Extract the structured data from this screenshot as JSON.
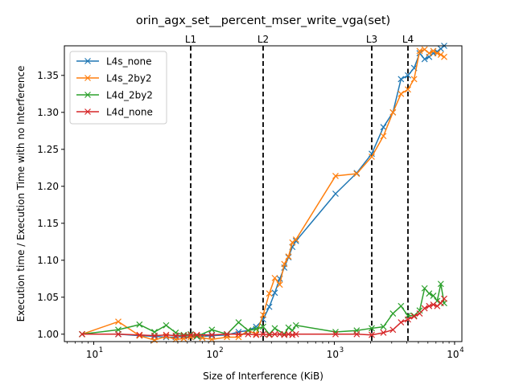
{
  "chart_data": {
    "type": "line",
    "title": "orin_agx_set__percent_mser_write_vga(set)",
    "xlabel": "Size of Interference (KiB)",
    "ylabel": "Execution time / Execution Time with no Interference",
    "xscale": "log",
    "xlim": [
      5.7,
      11500
    ],
    "ylim": [
      0.99,
      1.39
    ],
    "x_ticks": [
      {
        "value": 10,
        "label": "10",
        "exp": "1"
      },
      {
        "value": 100,
        "label": "10",
        "exp": "2"
      },
      {
        "value": 1000,
        "label": "10",
        "exp": "3"
      },
      {
        "value": 10000,
        "label": "10",
        "exp": "4"
      }
    ],
    "y_ticks": [
      {
        "value": 1.0,
        "label": "1.00"
      },
      {
        "value": 1.05,
        "label": "1.05"
      },
      {
        "value": 1.1,
        "label": "1.10"
      },
      {
        "value": 1.15,
        "label": "1.15"
      },
      {
        "value": 1.2,
        "label": "1.20"
      },
      {
        "value": 1.25,
        "label": "1.25"
      },
      {
        "value": 1.3,
        "label": "1.30"
      },
      {
        "value": 1.35,
        "label": "1.35"
      }
    ],
    "vlines": [
      {
        "label": "L1",
        "x": 64
      },
      {
        "label": "L2",
        "x": 256
      },
      {
        "label": "L3",
        "x": 2048
      },
      {
        "label": "L4",
        "x": 4096
      }
    ],
    "legend_position": "top-left",
    "grid": false,
    "series": [
      {
        "name": "L4s_none",
        "color": "#1f77b4",
        "x": [
          8,
          16,
          24,
          32,
          40,
          48,
          56,
          64,
          72,
          80,
          96,
          128,
          160,
          192,
          224,
          256,
          288,
          320,
          352,
          384,
          416,
          448,
          480,
          1024,
          1536,
          2048,
          2560,
          3072,
          3584,
          4096,
          4608,
          5120,
          5632,
          6144,
          6656,
          7168,
          7680,
          8192
        ],
        "values": [
          1.0,
          1.0,
          0.998,
          0.997,
          0.996,
          0.996,
          0.997,
          0.996,
          0.997,
          0.997,
          0.998,
          0.999,
          1.003,
          1.005,
          1.01,
          1.02,
          1.037,
          1.056,
          1.075,
          1.09,
          1.104,
          1.118,
          1.126,
          1.19,
          1.218,
          1.244,
          1.28,
          1.3,
          1.345,
          1.35,
          1.36,
          1.38,
          1.372,
          1.375,
          1.38,
          1.382,
          1.386,
          1.39
        ]
      },
      {
        "name": "L4s_2by2",
        "color": "#ff7f0e",
        "x": [
          8,
          16,
          24,
          32,
          40,
          48,
          56,
          64,
          72,
          80,
          96,
          128,
          160,
          192,
          224,
          256,
          288,
          320,
          352,
          384,
          416,
          448,
          480,
          1024,
          1536,
          2048,
          2560,
          3072,
          3584,
          4096,
          4608,
          5120,
          5632,
          6144,
          6656,
          7168,
          7680,
          8192
        ],
        "values": [
          1.0,
          1.017,
          0.998,
          0.992,
          0.997,
          0.993,
          0.994,
          0.996,
          0.998,
          0.995,
          0.993,
          0.996,
          0.996,
          1.005,
          1.0,
          1.026,
          1.055,
          1.076,
          1.067,
          1.095,
          1.105,
          1.124,
          1.128,
          1.214,
          1.217,
          1.24,
          1.268,
          1.3,
          1.325,
          1.331,
          1.345,
          1.383,
          1.385,
          1.38,
          1.383,
          1.38,
          1.378,
          1.375
        ]
      },
      {
        "name": "L4d_2by2",
        "color": "#2ca02c",
        "x": [
          8,
          16,
          24,
          32,
          40,
          48,
          56,
          64,
          72,
          96,
          128,
          160,
          192,
          224,
          256,
          288,
          320,
          384,
          416,
          448,
          480,
          1024,
          1536,
          2048,
          2560,
          3072,
          3584,
          4096,
          4608,
          5120,
          5632,
          6144,
          6656,
          7168,
          7680,
          8192
        ],
        "values": [
          1.0,
          1.006,
          1.013,
          1.003,
          1.012,
          1.002,
          0.999,
          1.0,
          0.997,
          1.006,
          1.0,
          1.016,
          1.005,
          1.007,
          1.01,
          1.0,
          1.008,
          1.0,
          1.009,
          1.005,
          1.012,
          1.003,
          1.005,
          1.008,
          1.01,
          1.028,
          1.038,
          1.025,
          1.025,
          1.032,
          1.062,
          1.055,
          1.052,
          1.045,
          1.068,
          1.042
        ]
      },
      {
        "name": "L4d_none",
        "color": "#d62728",
        "x": [
          8,
          16,
          24,
          32,
          40,
          48,
          56,
          64,
          72,
          96,
          128,
          160,
          192,
          224,
          256,
          288,
          320,
          352,
          384,
          416,
          448,
          480,
          1024,
          1536,
          2048,
          2560,
          3072,
          3584,
          4096,
          4608,
          5120,
          5632,
          6144,
          6656,
          7168,
          7680,
          8192
        ],
        "values": [
          1.0,
          1.0,
          0.999,
          0.998,
          0.999,
          0.998,
          0.998,
          0.999,
          0.999,
          0.999,
          1.0,
          1.0,
          1.0,
          0.999,
          1.0,
          0.999,
          1.0,
          1.0,
          0.999,
          1.0,
          0.999,
          1.0,
          1.0,
          1.0,
          0.999,
          1.002,
          1.006,
          1.016,
          1.02,
          1.024,
          1.028,
          1.035,
          1.038,
          1.04,
          1.038,
          1.042,
          1.048
        ]
      }
    ]
  }
}
